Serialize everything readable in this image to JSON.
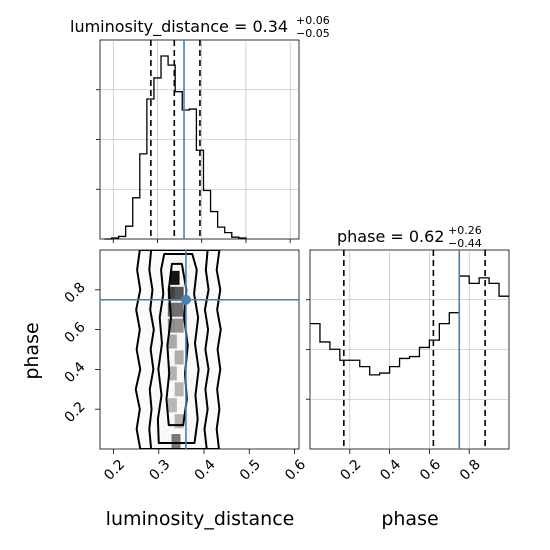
{
  "chart_data": [
    {
      "type": "histogram",
      "panel": "marginal-luminosity_distance",
      "title": {
        "main": "luminosity_distance = 0.34",
        "sup": "+0.06",
        "sub": "−0.05"
      },
      "xlim": [
        0.17,
        0.62
      ],
      "ylim": [
        0,
        1
      ],
      "grid": true,
      "bin_edges": [
        0.18,
        0.196,
        0.212,
        0.228,
        0.244,
        0.26,
        0.276,
        0.292,
        0.308,
        0.324,
        0.34,
        0.356,
        0.372,
        0.388,
        0.404,
        0.42,
        0.436,
        0.452,
        0.468,
        0.484,
        0.5
      ],
      "density": [
        0.0,
        0.005,
        0.014,
        0.07,
        0.225,
        0.465,
        0.765,
        0.88,
        1.0,
        0.95,
        0.805,
        0.705,
        0.71,
        0.485,
        0.265,
        0.15,
        0.065,
        0.035,
        0.01,
        0.005
      ],
      "quantiles": [
        0.285,
        0.338,
        0.396
      ],
      "truth": 0.36
    },
    {
      "type": "histogram",
      "panel": "marginal-phase",
      "title": {
        "main": "phase = 0.62",
        "sup": "+0.26",
        "sub": "−0.44"
      },
      "xlim": [
        0.0,
        1.0
      ],
      "ylim": [
        0,
        1
      ],
      "grid": true,
      "bin_edges": [
        0.0,
        0.05,
        0.1,
        0.15,
        0.2,
        0.25,
        0.3,
        0.35,
        0.4,
        0.45,
        0.5,
        0.55,
        0.6,
        0.65,
        0.7,
        0.75,
        0.8,
        0.85,
        0.9,
        0.95,
        1.0
      ],
      "density": [
        0.685,
        0.585,
        0.545,
        0.485,
        0.485,
        0.45,
        0.405,
        0.415,
        0.45,
        0.495,
        0.505,
        0.555,
        0.595,
        0.685,
        0.745,
        0.945,
        0.905,
        0.935,
        0.905,
        0.835
      ],
      "quantiles": [
        0.17,
        0.62,
        0.88
      ],
      "truth": 0.75,
      "xticks": [
        0.2,
        0.4,
        0.6,
        0.8
      ]
    },
    {
      "type": "scatter",
      "panel": "joint-luminosity_distance-phase",
      "xlabel": "luminosity_distance",
      "ylabel": "phase",
      "xlim": [
        0.17,
        0.61
      ],
      "ylim": [
        0.0,
        1.0
      ],
      "xticks": [
        0.2,
        0.3,
        0.4,
        0.5,
        0.6
      ],
      "yticks": [
        0.2,
        0.4,
        0.6,
        0.8
      ],
      "truth": [
        0.36,
        0.75
      ],
      "contours": [
        [
          [
            0.259,
            0.0
          ],
          [
            0.251,
            0.1
          ],
          [
            0.258,
            0.2
          ],
          [
            0.249,
            0.3
          ],
          [
            0.259,
            0.4
          ],
          [
            0.251,
            0.5
          ],
          [
            0.258,
            0.6
          ],
          [
            0.25,
            0.7
          ],
          [
            0.259,
            0.8
          ],
          [
            0.252,
            0.9
          ],
          [
            0.258,
            1.0
          ],
          [
            0.434,
            1.0
          ],
          [
            0.428,
            0.9
          ],
          [
            0.436,
            0.8
          ],
          [
            0.429,
            0.7
          ],
          [
            0.437,
            0.6
          ],
          [
            0.43,
            0.5
          ],
          [
            0.436,
            0.4
          ],
          [
            0.429,
            0.3
          ],
          [
            0.434,
            0.2
          ],
          [
            0.428,
            0.1
          ],
          [
            0.433,
            0.0
          ]
        ],
        [
          [
            0.283,
            0.0
          ],
          [
            0.279,
            0.1
          ],
          [
            0.284,
            0.2
          ],
          [
            0.28,
            0.3
          ],
          [
            0.288,
            0.4
          ],
          [
            0.282,
            0.5
          ],
          [
            0.289,
            0.6
          ],
          [
            0.281,
            0.7
          ],
          [
            0.286,
            0.8
          ],
          [
            0.279,
            0.9
          ],
          [
            0.283,
            1.0
          ],
          [
            0.408,
            1.0
          ],
          [
            0.404,
            0.9
          ],
          [
            0.41,
            0.8
          ],
          [
            0.402,
            0.7
          ],
          [
            0.409,
            0.6
          ],
          [
            0.403,
            0.5
          ],
          [
            0.41,
            0.4
          ],
          [
            0.403,
            0.3
          ],
          [
            0.408,
            0.2
          ],
          [
            0.401,
            0.1
          ],
          [
            0.406,
            0.0
          ]
        ],
        [
          [
            0.3,
            0.03
          ],
          [
            0.298,
            0.15
          ],
          [
            0.306,
            0.27
          ],
          [
            0.299,
            0.4
          ],
          [
            0.307,
            0.53
          ],
          [
            0.302,
            0.66
          ],
          [
            0.31,
            0.78
          ],
          [
            0.305,
            0.9
          ],
          [
            0.312,
            0.98
          ],
          [
            0.374,
            0.98
          ],
          [
            0.384,
            0.9
          ],
          [
            0.378,
            0.78
          ],
          [
            0.387,
            0.66
          ],
          [
            0.38,
            0.53
          ],
          [
            0.388,
            0.4
          ],
          [
            0.381,
            0.27
          ],
          [
            0.386,
            0.15
          ],
          [
            0.379,
            0.03
          ]
        ],
        [
          [
            0.322,
            0.12
          ],
          [
            0.317,
            0.25
          ],
          [
            0.323,
            0.38
          ],
          [
            0.319,
            0.52
          ],
          [
            0.327,
            0.66
          ],
          [
            0.322,
            0.8
          ],
          [
            0.329,
            0.93
          ],
          [
            0.351,
            0.93
          ],
          [
            0.361,
            0.8
          ],
          [
            0.356,
            0.66
          ],
          [
            0.364,
            0.52
          ],
          [
            0.358,
            0.38
          ],
          [
            0.362,
            0.25
          ],
          [
            0.354,
            0.12
          ]
        ]
      ],
      "density_cells": [
        {
          "x": 0.336,
          "y": 0.86,
          "level": 1.0
        },
        {
          "x": 0.33,
          "y": 0.78,
          "level": 0.8
        },
        {
          "x": 0.345,
          "y": 0.78,
          "level": 0.7
        },
        {
          "x": 0.33,
          "y": 0.7,
          "level": 0.6
        },
        {
          "x": 0.345,
          "y": 0.7,
          "level": 0.58
        },
        {
          "x": 0.33,
          "y": 0.62,
          "level": 0.45
        },
        {
          "x": 0.345,
          "y": 0.62,
          "level": 0.42
        },
        {
          "x": 0.33,
          "y": 0.54,
          "level": 0.32
        },
        {
          "x": 0.345,
          "y": 0.46,
          "level": 0.3
        },
        {
          "x": 0.33,
          "y": 0.38,
          "level": 0.28
        },
        {
          "x": 0.345,
          "y": 0.3,
          "level": 0.27
        },
        {
          "x": 0.33,
          "y": 0.22,
          "level": 0.26
        },
        {
          "x": 0.345,
          "y": 0.14,
          "level": 0.28
        },
        {
          "x": 0.338,
          "y": 0.04,
          "level": 0.55
        }
      ]
    }
  ],
  "colors": {
    "truth": "#4682b4",
    "hist": "#000000",
    "grid": "#b0b0b0",
    "points": "#9a9a9a"
  }
}
